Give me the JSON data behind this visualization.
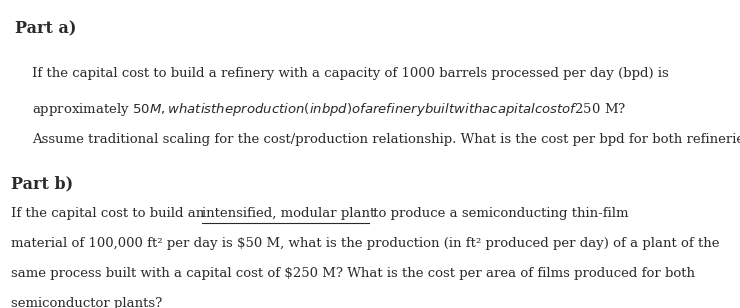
{
  "background_color": "#ffffff",
  "part_a_header": "Part a)",
  "part_a_line1": "If the capital cost to build a refinery with a capacity of 1000 barrels processed per day (bpd) is",
  "part_a_line2": "approximately $50 M, what is the production (in bpd) of a refinery built with a capital cost of $250 M?",
  "part_a_line3": "Assume traditional scaling for the cost/production relationship. What is the cost per bpd for both refineries?",
  "part_b_header": "Part b)",
  "part_b_line1_plain_start": "If the capital cost to build an ",
  "part_b_line1_underline": "intensified, modular plant",
  "part_b_line1_plain_end": " to produce a semiconducting thin-film",
  "part_b_line2": "material of 100,000 ft² per day is $50 M, what is the production (in ft² produced per day) of a plant of the",
  "part_b_line3": "same process built with a capital cost of $250 M? What is the cost per area of films produced for both",
  "part_b_line4": "semiconductor plants?",
  "font_size_header": 11.5,
  "font_size_body": 9.5,
  "font_family": "serif",
  "text_color": "#2a2a2a"
}
